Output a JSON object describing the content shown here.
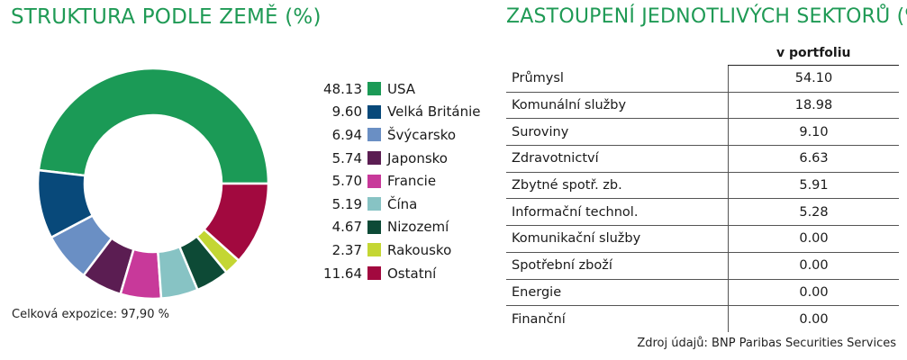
{
  "left_title": "STRUKTURA PODLE ZEMĚ (%)",
  "right_title": "ZASTOUPENÍ JEDNOTLIVÝCH SEKTORŮ (%)",
  "exposure_note": "Celková expozice: 97,90 %",
  "source_note": "Zdroj údajů: BNP Paribas Securities Services",
  "chart_data": {
    "type": "pie",
    "donut": true,
    "categories": [
      "USA",
      "Velká Británie",
      "Švýcarsko",
      "Japonsko",
      "Francie",
      "Čína",
      "Nizozemí",
      "Rakousko",
      "Ostatní"
    ],
    "values": [
      48.13,
      9.6,
      6.94,
      5.74,
      5.7,
      5.19,
      4.67,
      2.37,
      11.64
    ],
    "value_labels": [
      "48.13",
      "9.60",
      "6.94",
      "5.74",
      "5.70",
      "5.19",
      "4.67",
      "2.37",
      "11.64"
    ],
    "colors": [
      "#1b9a56",
      "#08497a",
      "#6a8fc4",
      "#5b1d52",
      "#c8399a",
      "#87c3c4",
      "#0d4a36",
      "#c4d633",
      "#a2093f"
    ],
    "legend_position": "right",
    "start_angle_deg": 0,
    "direction": "counterclockwise"
  },
  "sector_table": {
    "column_header": "v portfoliu",
    "rows": [
      {
        "name": "Průmysl",
        "value": "54.10"
      },
      {
        "name": "Komunální služby",
        "value": "18.98"
      },
      {
        "name": "Suroviny",
        "value": "9.10"
      },
      {
        "name": "Zdravotnictví",
        "value": "6.63"
      },
      {
        "name": "Zbytné spotř. zb.",
        "value": "5.91"
      },
      {
        "name": "Informační technol.",
        "value": "5.28"
      },
      {
        "name": "Komunikační služby",
        "value": "0.00"
      },
      {
        "name": "Spotřební zboží",
        "value": "0.00"
      },
      {
        "name": "Energie",
        "value": "0.00"
      },
      {
        "name": "Finanční",
        "value": "0.00"
      }
    ]
  }
}
